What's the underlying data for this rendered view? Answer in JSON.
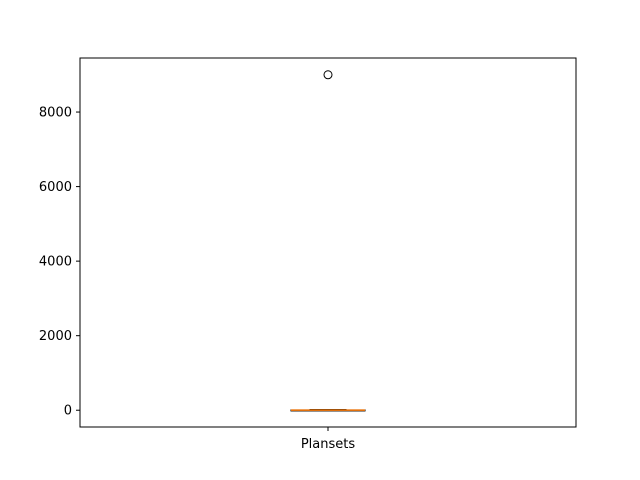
{
  "chart_data": {
    "type": "box",
    "categories": [
      "Plansets"
    ],
    "boxes": [
      {
        "category": "Plansets",
        "whisker_low": 0,
        "q1": 1,
        "median": 3,
        "q3": 8,
        "whisker_high": 20,
        "outliers": [
          9000
        ]
      }
    ],
    "y_ticks": [
      0,
      2000,
      4000,
      6000,
      8000
    ],
    "ylim": [
      -450,
      9450
    ],
    "grid": false,
    "title": "",
    "xlabel": "",
    "ylabel": "",
    "colors": {
      "median": "#ff7f0e",
      "box": "#000000",
      "outlier": "#000000",
      "axes": "#000000"
    }
  }
}
